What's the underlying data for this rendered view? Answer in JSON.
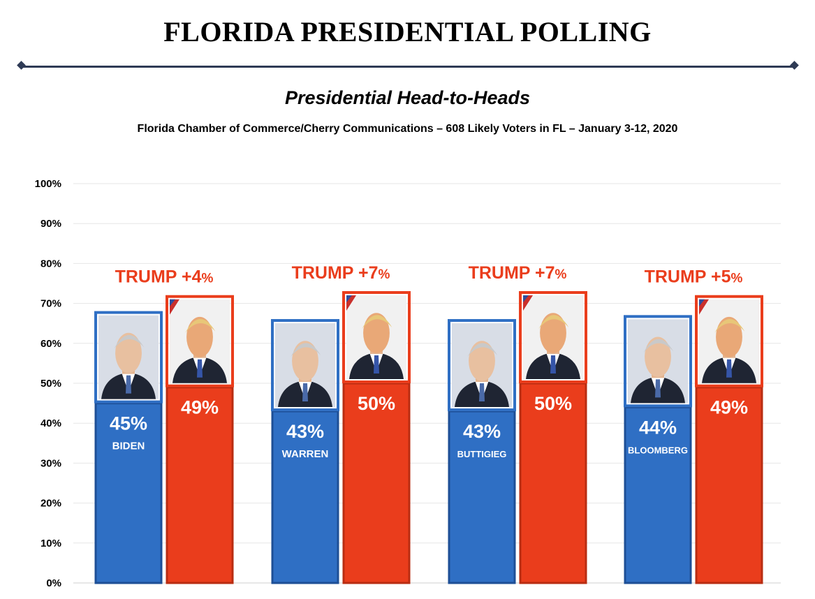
{
  "header": {
    "title": "FLORIDA PRESIDENTIAL POLLING",
    "subtitle": "Presidential Head-to-Heads",
    "source": "Florida Chamber of Commerce/Cherry Communications – 608 Likely Voters in FL – January 3-12, 2020"
  },
  "colors": {
    "democrat": "#2f6fc4",
    "democrat_border": "#1e4f96",
    "republican": "#ea3d1c",
    "republican_border": "#b92d12",
    "margin_text": "#ea3d1c",
    "rule": "#2e3a55"
  },
  "chart_data": {
    "type": "bar",
    "y_ticks": [
      "0%",
      "10%",
      "20%",
      "30%",
      "40%",
      "50%",
      "60%",
      "70%",
      "80%",
      "90%",
      "100%"
    ],
    "ylim": [
      0,
      100
    ],
    "grid": true,
    "matchups": [
      {
        "margin_label": "TRUMP +4",
        "margin_suffix": "%",
        "democrat": {
          "name": "BIDEN",
          "value": 45,
          "label": "45%",
          "photo_icon": "biden-photo-icon"
        },
        "republican": {
          "value": 49,
          "label": "49%",
          "photo_icon": "trump-photo-icon"
        }
      },
      {
        "margin_label": "TRUMP +7",
        "margin_suffix": "%",
        "democrat": {
          "name": "WARREN",
          "value": 43,
          "label": "43%",
          "photo_icon": "warren-photo-icon"
        },
        "republican": {
          "value": 50,
          "label": "50%",
          "photo_icon": "trump-photo-icon"
        }
      },
      {
        "margin_label": "TRUMP +7",
        "margin_suffix": "%",
        "democrat": {
          "name": "BUTTIGIEG",
          "value": 43,
          "label": "43%",
          "photo_icon": "buttigieg-photo-icon"
        },
        "republican": {
          "value": 50,
          "label": "50%",
          "photo_icon": "trump-photo-icon"
        }
      },
      {
        "margin_label": "TRUMP +5",
        "margin_suffix": "%",
        "democrat": {
          "name": "BLOOMBERG",
          "value": 44,
          "label": "44%",
          "photo_icon": "bloomberg-photo-icon"
        },
        "republican": {
          "value": 49,
          "label": "49%",
          "photo_icon": "trump-photo-icon"
        }
      }
    ]
  }
}
